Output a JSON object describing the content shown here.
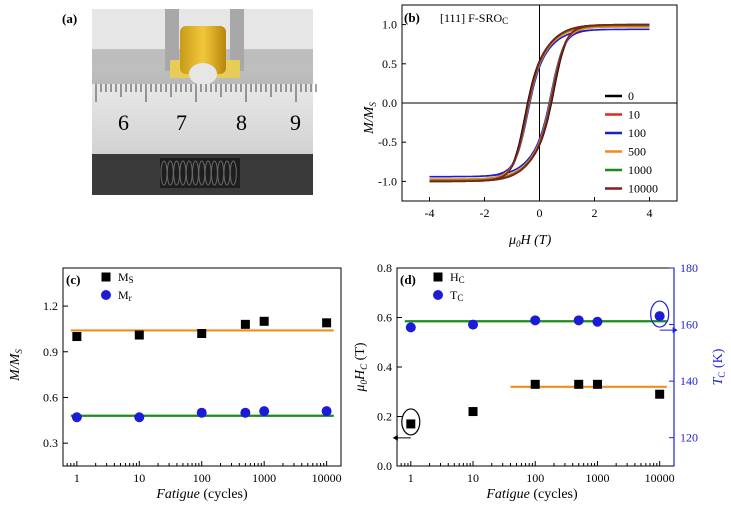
{
  "panel_a": {
    "label": "(a)",
    "ruler_numbers": [
      "6",
      "7",
      "8",
      "9"
    ]
  },
  "chart_data": [
    {
      "panel": "(b)",
      "type": "line",
      "annotation": "[111] F-SRO",
      "annotation_sub": "C",
      "xlabel": "μ",
      "xlabel_sub": "0",
      "xlabel_rest": "H (T)",
      "ylabel": "M/M",
      "ylabel_sub": "S",
      "xlim": [
        -5,
        5
      ],
      "ylim": [
        -1.25,
        1.25
      ],
      "xticks": [
        -4,
        -2,
        0,
        2,
        4
      ],
      "xtick_labels": [
        "-4",
        "-2",
        "0",
        "2",
        "4"
      ],
      "yticks": [
        -1.0,
        -0.5,
        0.0,
        0.5,
        1.0
      ],
      "ytick_labels": [
        "-1.0",
        "-0.5",
        "0.0",
        "0.5",
        "1.0"
      ],
      "legend_position": "bottom-right",
      "series": [
        {
          "name": "0",
          "color": "#000000",
          "ms": 1.0,
          "hc": 0.55
        },
        {
          "name": "10",
          "color": "#e8231c",
          "ms": 0.98,
          "hc": 0.5
        },
        {
          "name": "100",
          "color": "#1c1cd8",
          "ms": 0.94,
          "hc": 0.45
        },
        {
          "name": "500",
          "color": "#f28c1c",
          "ms": 0.97,
          "hc": 0.48
        },
        {
          "name": "1000",
          "color": "#1c8a1c",
          "ms": 0.99,
          "hc": 0.5
        },
        {
          "name": "10000",
          "color": "#8b1a1a",
          "ms": 1.0,
          "hc": 0.52
        }
      ]
    },
    {
      "panel": "(c)",
      "type": "scatter",
      "xlabel": "Fatigue",
      "xlabel_rest": " (cycles)",
      "ylabel": "M/M",
      "ylabel_sub": "S",
      "xscale": "log",
      "xlim": [
        0.6,
        17000
      ],
      "ylim": [
        0.15,
        1.45
      ],
      "xticks": [
        1,
        10,
        100,
        1000,
        10000
      ],
      "xtick_labels": [
        "1",
        "10",
        "100",
        "1000",
        "10000"
      ],
      "yticks": [
        0.3,
        0.6,
        0.9,
        1.2
      ],
      "ytick_labels": [
        "0.3",
        "0.6",
        "0.9",
        "1.2"
      ],
      "legend": [
        {
          "name": "M",
          "sub": "S",
          "marker": "square",
          "color": "#000000"
        },
        {
          "name": "M",
          "sub": "r",
          "marker": "circle",
          "color": "#1c1cd8"
        }
      ],
      "series": [
        {
          "name": "Ms",
          "marker": "square",
          "color": "#000000",
          "x": [
            1,
            10,
            100,
            500,
            1000,
            10000
          ],
          "y": [
            1.0,
            1.01,
            1.02,
            1.08,
            1.1,
            1.09
          ]
        },
        {
          "name": "Mr",
          "marker": "circle",
          "color": "#1c1cd8",
          "x": [
            1,
            10,
            100,
            500,
            1000,
            10000
          ],
          "y": [
            0.47,
            0.47,
            0.5,
            0.5,
            0.51,
            0.51
          ]
        }
      ],
      "lines": [
        {
          "color": "#f28c1c",
          "x": [
            0.8,
            13000
          ],
          "y": [
            1.04,
            1.04
          ]
        },
        {
          "color": "#1c8a1c",
          "x": [
            0.8,
            13000
          ],
          "y": [
            0.48,
            0.48
          ]
        }
      ]
    },
    {
      "panel": "(d)",
      "type": "scatter",
      "xlabel": "Fatigue",
      "xlabel_rest": " (cycles)",
      "ylabel": "μ",
      "ylabel_sub": "0",
      "ylabel_rest": "H",
      "ylabel_sub2": "C",
      "ylabel_unit": " (T)",
      "y2label": "T",
      "y2label_sub": "C",
      "y2label_unit": " (K)",
      "xscale": "log",
      "xlim": [
        0.6,
        17000
      ],
      "ylim": [
        0.0,
        0.8
      ],
      "y2lim": [
        110,
        180
      ],
      "xticks": [
        1,
        10,
        100,
        1000,
        10000
      ],
      "xtick_labels": [
        "1",
        "10",
        "100",
        "1000",
        "10000"
      ],
      "yticks": [
        0.0,
        0.2,
        0.4,
        0.6,
        0.8
      ],
      "ytick_labels": [
        "0.0",
        "0.2",
        "0.4",
        "0.6",
        "0.8"
      ],
      "y2ticks": [
        120,
        140,
        160,
        180
      ],
      "y2tick_labels": [
        "120",
        "140",
        "160",
        "180"
      ],
      "legend": [
        {
          "name": "H",
          "sub": "C",
          "marker": "square",
          "color": "#000000"
        },
        {
          "name": "T",
          "sub": "C",
          "marker": "circle",
          "color": "#1c1cd8"
        }
      ],
      "series": [
        {
          "name": "Hc",
          "axis": "left",
          "marker": "square",
          "color": "#000000",
          "x": [
            1,
            10,
            100,
            500,
            1000,
            10000
          ],
          "y": [
            0.17,
            0.22,
            0.33,
            0.33,
            0.33,
            0.29
          ]
        },
        {
          "name": "Tc",
          "axis": "right",
          "marker": "circle",
          "color": "#1c1cd8",
          "x": [
            1,
            10,
            100,
            500,
            1000,
            10000
          ],
          "y": [
            159,
            160,
            161.5,
            161.5,
            161,
            163
          ]
        }
      ],
      "lines": [
        {
          "color": "#1c8a1c",
          "axis": "left",
          "x": [
            0.8,
            13000
          ],
          "y": [
            0.585,
            0.585
          ]
        },
        {
          "color": "#f28c1c",
          "axis": "left",
          "x": [
            40,
            13000
          ],
          "y": [
            0.32,
            0.32
          ]
        }
      ]
    }
  ]
}
